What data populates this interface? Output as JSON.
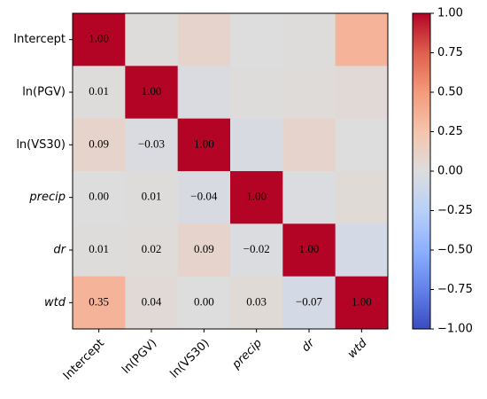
{
  "chart_data": {
    "type": "heatmap",
    "categories": [
      "Intercept",
      "ln(PGV)",
      "ln(VS30)",
      "precip",
      "dr",
      "wtd"
    ],
    "values": [
      [
        1.0
      ],
      [
        0.01,
        1.0
      ],
      [
        0.09,
        -0.03,
        1.0
      ],
      [
        0.0,
        0.01,
        -0.04,
        1.0
      ],
      [
        0.01,
        0.02,
        0.09,
        -0.02,
        1.0
      ],
      [
        0.35,
        0.04,
        0.0,
        0.03,
        -0.07,
        1.0
      ]
    ],
    "value_labels": [
      [
        "1.00"
      ],
      [
        "0.01",
        "1.00"
      ],
      [
        "0.09",
        "−0.03",
        "1.00"
      ],
      [
        "0.00",
        "0.01",
        "−0.04",
        "1.00"
      ],
      [
        "0.01",
        "0.02",
        "0.09",
        "−0.02",
        "1.00"
      ],
      [
        "0.35",
        "0.04",
        "0.00",
        "0.03",
        "−0.07",
        "1.00"
      ]
    ],
    "colormap": "coolwarm",
    "clim": [
      -1,
      1
    ],
    "cticks": [
      {
        "value": -1,
        "label": "−1.00"
      },
      {
        "value": -0.75,
        "label": "−0.75"
      },
      {
        "value": -0.5,
        "label": "−0.50"
      },
      {
        "value": -0.25,
        "label": "−0.25"
      },
      {
        "value": 0,
        "label": "0.00"
      },
      {
        "value": 0.25,
        "label": "0.25"
      },
      {
        "value": 0.5,
        "label": "0.50"
      },
      {
        "value": 0.75,
        "label": "0.75"
      },
      {
        "value": 1,
        "label": "1.00"
      }
    ]
  }
}
